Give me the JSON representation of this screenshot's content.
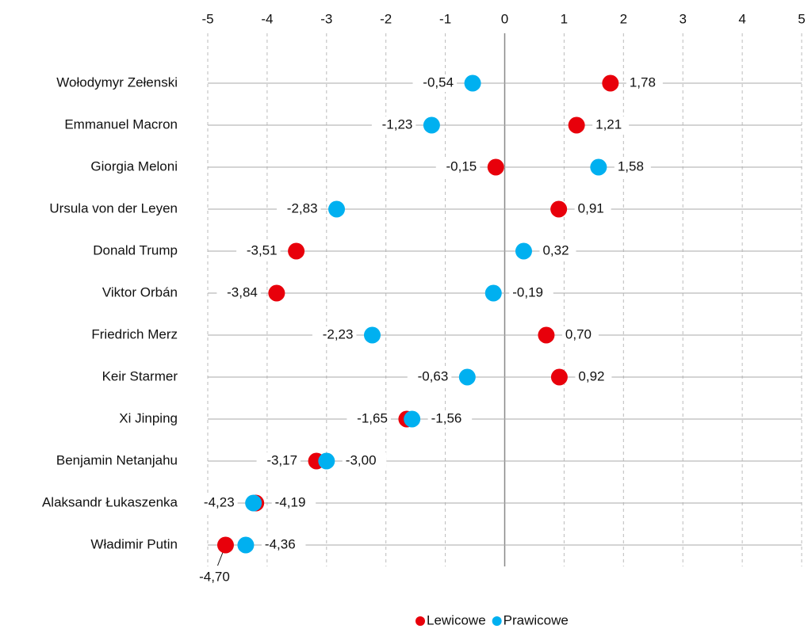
{
  "chart_data": {
    "type": "dot",
    "categories": [
      "Wołodymyr Zełenski",
      "Emmanuel Macron",
      "Giorgia Meloni",
      "Ursula von der Leyen",
      "Donald Trump",
      "Viktor Orbán",
      "Friedrich Merz",
      "Keir Starmer",
      "Xi Jinping",
      "Benjamin Netanjahu",
      "Alaksandr Łukaszenka",
      "Władimir Putin"
    ],
    "series": [
      {
        "name": "Lewicowe",
        "color": "#e8000b",
        "values": [
          1.78,
          1.21,
          -0.15,
          0.91,
          -3.51,
          -3.84,
          0.7,
          0.92,
          -1.65,
          -3.17,
          -4.19,
          -4.7
        ],
        "value_labels": [
          "1,78",
          "1,21",
          "-0,15",
          "0,91",
          "-3,51",
          "-3,84",
          "0,70",
          "0,92",
          "-1,65",
          "-3,17",
          "-4,19",
          "-4,70"
        ]
      },
      {
        "name": "Prawicowe",
        "color": "#00b0f0",
        "values": [
          -0.54,
          -1.23,
          1.58,
          -2.83,
          0.32,
          -0.19,
          -2.23,
          -0.63,
          -1.56,
          -3.0,
          -4.23,
          -4.36
        ],
        "value_labels": [
          "-0,54",
          "-1,23",
          "1,58",
          "-2,83",
          "0,32",
          "-0,19",
          "-2,23",
          "-0,63",
          "-1,56",
          "-3,00",
          "-4,23",
          "-4,36"
        ]
      }
    ],
    "xlim": [
      -5,
      5
    ],
    "xticks": [
      -5,
      -4,
      -3,
      -2,
      -1,
      0,
      1,
      2,
      3,
      4,
      5
    ],
    "grid": true,
    "legend": "bottom"
  }
}
